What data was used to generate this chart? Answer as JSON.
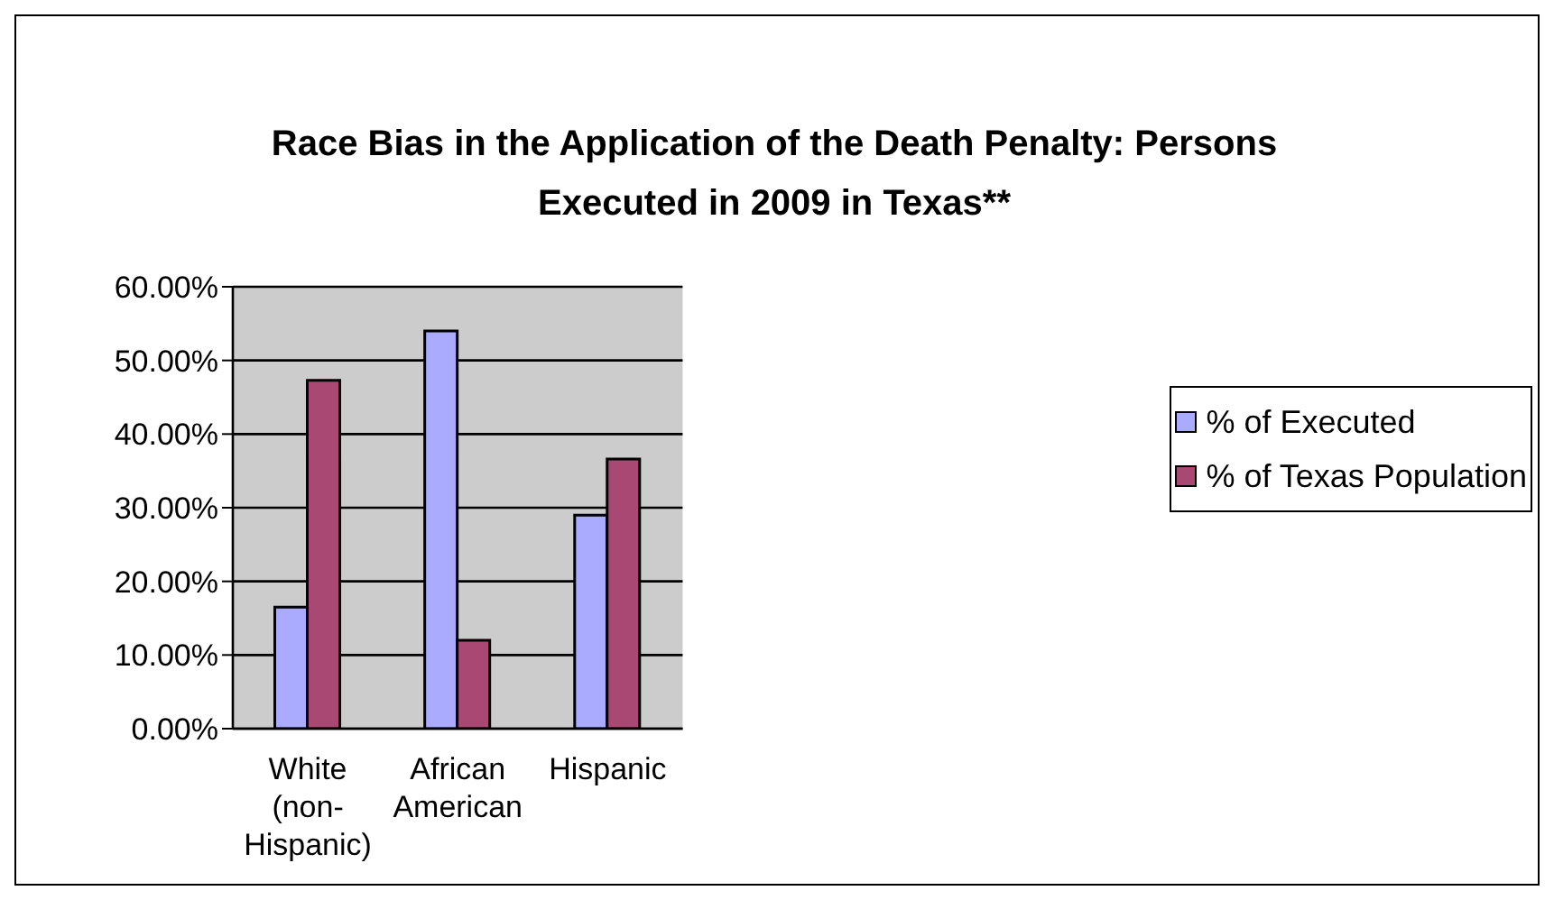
{
  "chart_data": {
    "type": "bar",
    "title": "Race Bias in the Application of the Death Penalty: Persons Executed in 2009 in Texas**",
    "categories": [
      "White (non-Hispanic)",
      "African American",
      "Hispanic"
    ],
    "series": [
      {
        "name": "% of Executed",
        "color": "#aaaaff",
        "values": [
          16.5,
          54.0,
          29.0
        ]
      },
      {
        "name": "% of Texas Population",
        "color": "#a94872",
        "values": [
          47.3,
          12.0,
          36.6
        ]
      }
    ],
    "ylim": [
      0,
      60
    ],
    "yticks": [
      {
        "value": 0,
        "label": "0.00%"
      },
      {
        "value": 10,
        "label": "10.00%"
      },
      {
        "value": 20,
        "label": "20.00%"
      },
      {
        "value": 30,
        "label": "30.00%"
      },
      {
        "value": 40,
        "label": "40.00%"
      },
      {
        "value": 50,
        "label": "50.00%"
      },
      {
        "value": 60,
        "label": "60.00%"
      }
    ],
    "grid": "y",
    "legend": "right"
  }
}
